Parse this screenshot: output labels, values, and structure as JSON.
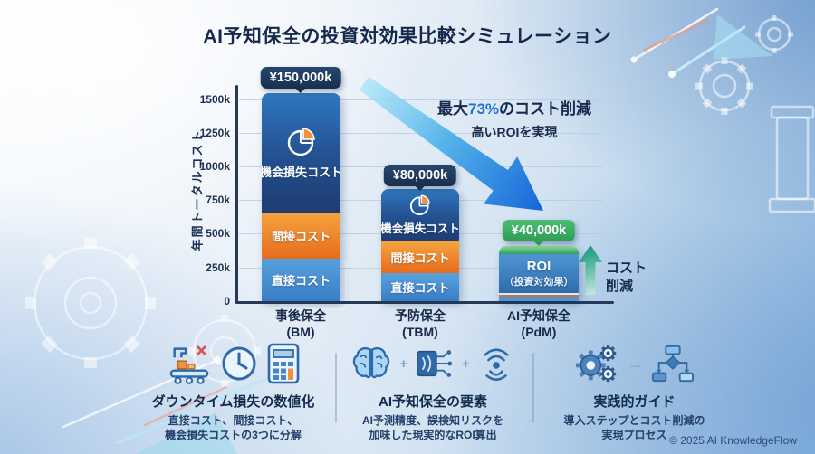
{
  "title": "AI予知保全の投資対効果比較シミュレーション",
  "chart_data": {
    "type": "bar",
    "stacked": true,
    "title": "AI予知保全の投資対効果比較シミュレーション",
    "ylabel": "年間トータルコスト",
    "yticks": [
      "1500k",
      "1250k",
      "1000k",
      "750k",
      "500k",
      "250k",
      "0"
    ],
    "ylim_k": [
      0,
      1600
    ],
    "grid": true,
    "legend_position": "none",
    "bars": [
      {
        "name": "事後保全",
        "code": "(BM)",
        "total_label": "¥150,000k",
        "total_k_est": 1550,
        "segments": [
          {
            "label": "直接コスト",
            "value_k": 317,
            "color": "#4a90d4"
          },
          {
            "label": "間接コスト",
            "value_k": 345,
            "color": "#ef8430"
          },
          {
            "label": "機会損失コスト",
            "value_k": 888,
            "color": "#1d3c72",
            "icon": "pie-chart-icon"
          }
        ]
      },
      {
        "name": "予防保全",
        "code": "(TBM)",
        "total_label": "¥80,000k",
        "total_k_est": 838,
        "segments": [
          {
            "label": "直接コスト",
            "value_k": 210,
            "color": "#4a90d4"
          },
          {
            "label": "間接コスト",
            "value_k": 235,
            "color": "#ef8430"
          },
          {
            "label": "機会損失コスト",
            "value_k": 393,
            "color": "#1d3c72",
            "icon": "pie-chart-icon"
          }
        ]
      },
      {
        "name": "AI予知保全",
        "code": "(PdM)",
        "total_label": "¥40,000k",
        "total_k_est": 408,
        "segments": [
          {
            "label": "",
            "value_k": 34,
            "color": "#4e95d2"
          },
          {
            "label": "",
            "value_k": 27,
            "color": "#cc7046"
          },
          {
            "label": "ROI",
            "sublabel": "（投資対効果）",
            "value_k": 290,
            "color": "#3c82c4"
          },
          {
            "label": "",
            "value_k": 57,
            "color": "#4cbb72"
          }
        ]
      }
    ],
    "annotation": {
      "prefix": "最大",
      "highlight": "73%",
      "suffix": "のコスト削減",
      "line2": "高いROIを実現",
      "highlight_color": "#1c74d4"
    },
    "cost_reduction_arrow_label": {
      "line1": "コスト",
      "line2": "削減"
    }
  },
  "colors": {
    "navy": "#16294d",
    "accent_blue": "#1c74d4",
    "bar_navy": "#1d3c72",
    "bar_orange": "#ef8430",
    "bar_blue": "#4a90d4",
    "green": "#35a967",
    "badge_navy": "#18304f",
    "badge_green": "#2d9c55"
  },
  "features": [
    {
      "title": "ダウンタイム損失の数値化",
      "desc1": "直接コスト、間接コスト、",
      "desc2": "機会損失コストの3つに分解",
      "icons": [
        "machine-downtime-icon",
        "clock-icon",
        "calculator-icon"
      ],
      "icon_separator": ""
    },
    {
      "title": "AI予知保全の要素",
      "desc1": "AI予測精度、誤検知リスクを",
      "desc2": "加味した現実的なROI算出",
      "icons": [
        "brain-icon",
        "chip-icon",
        "sensor-icon"
      ],
      "icon_separator": "+"
    },
    {
      "title": "実践的ガイド",
      "desc1": "導入ステップとコスト削減の",
      "desc2": "実現プロセス",
      "icons": [
        "gears-icon",
        "flowchart-icon"
      ],
      "icon_separator": "→"
    }
  ],
  "footer": {
    "copyright": "© 2025 AI KnowledgeFlow"
  }
}
